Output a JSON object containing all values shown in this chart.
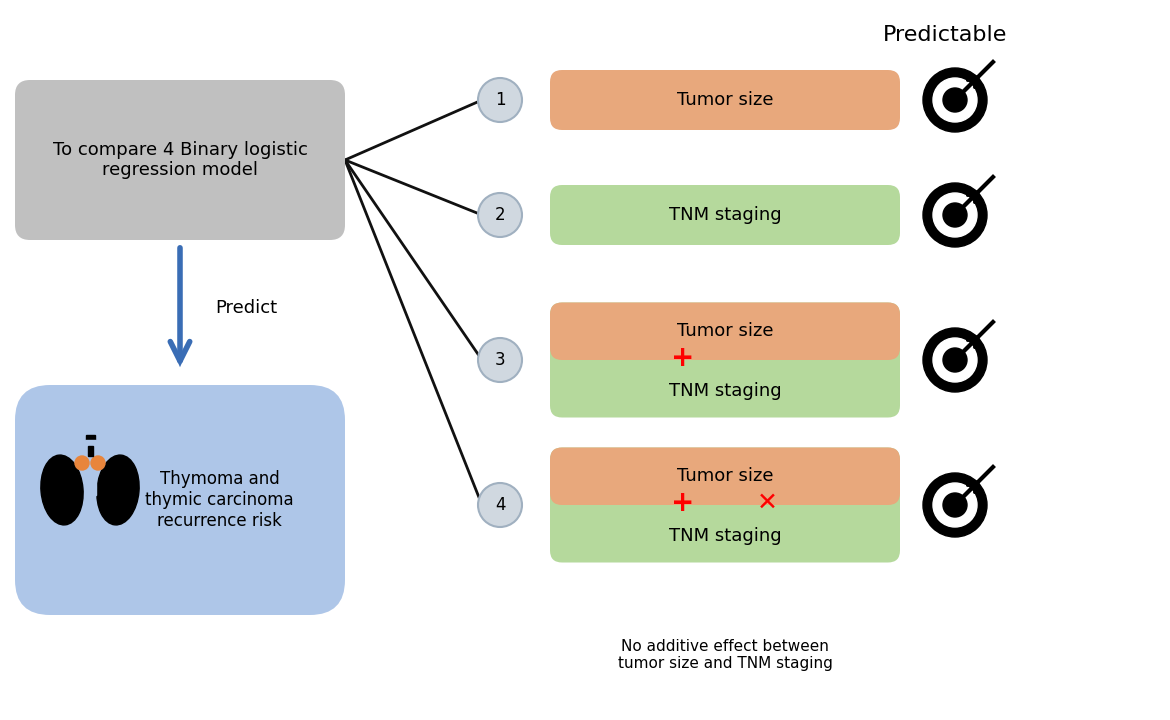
{
  "title": "Predictable",
  "left_box_text": "To compare 4 Binary logistic\nregression model",
  "left_box_color": "#c0c0c0",
  "predict_text": "Predict",
  "predict_box_text": "Thymoma and\nthymic carcinoma\nrecurrence risk",
  "predict_box_color": "#aec6e8",
  "models": [
    {
      "num": "1",
      "top_color": "#e8a87c",
      "top_text": "Tumor size",
      "bottom_color": null,
      "bottom_text": null,
      "plus": false,
      "cross": false
    },
    {
      "num": "2",
      "top_color": null,
      "top_text": null,
      "bottom_color": "#b5d99c",
      "bottom_text": "TNM staging",
      "plus": false,
      "cross": false
    },
    {
      "num": "3",
      "top_color": "#e8a87c",
      "top_text": "Tumor size",
      "bottom_color": "#b5d99c",
      "bottom_text": "TNM staging",
      "plus": true,
      "cross": false
    },
    {
      "num": "4",
      "top_color": "#e8a87c",
      "top_text": "Tumor size",
      "bottom_color": "#b5d99c",
      "bottom_text": "TNM staging",
      "plus": true,
      "cross": true
    }
  ],
  "footnote": "No additive effect between\ntumor size and TNM staging",
  "circle_color": "#d0d8e0",
  "circle_edge": "#a0b0c0",
  "arrow_color": "#3a6db5",
  "line_color": "#111111",
  "background_color": "#ffffff"
}
